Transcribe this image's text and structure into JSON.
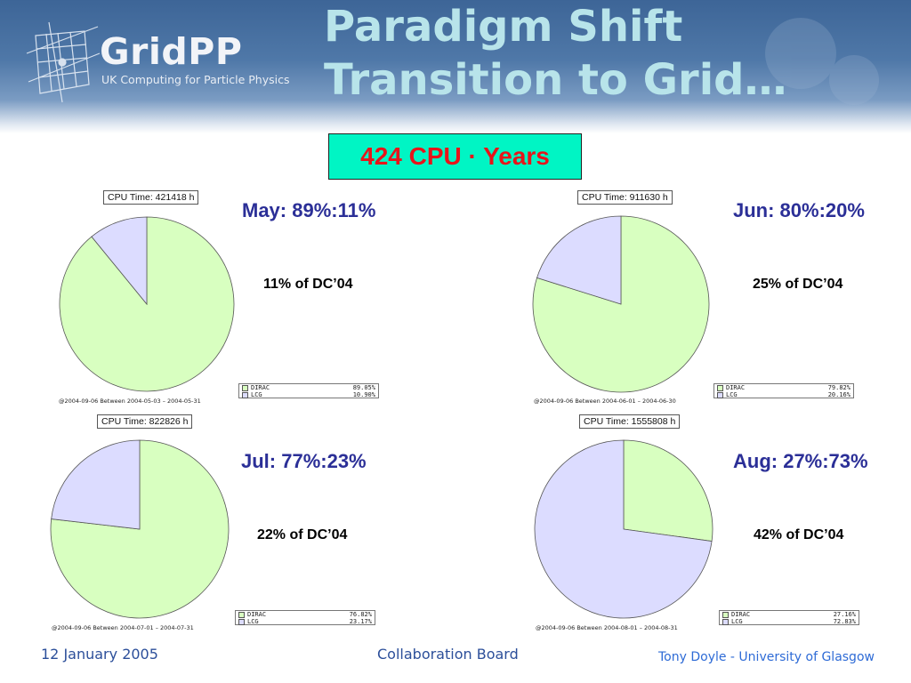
{
  "header": {
    "logo_word": "GridPP",
    "logo_sub": "UK Computing for Particle Physics",
    "title_line1": "Paradigm Shift",
    "title_line2": "Transition to Grid…"
  },
  "total_label": "424 CPU · Years",
  "colors": {
    "dirac": "#d8ffc0",
    "lcg": "#dcdcff",
    "ratio_text": "#2b2f97",
    "total_box_bg": "#00f5c4",
    "total_box_text": "#e8141a",
    "footer_text": "#2c4f9a"
  },
  "chart_data": [
    {
      "type": "pie",
      "title": "CPU Time: 421418 h",
      "categories": [
        "DIRAC",
        "LCG"
      ],
      "values": [
        89.05,
        10.9
      ],
      "value_labels": [
        "89.05%",
        "10.90%"
      ],
      "footnote": "@2004-09-06  Between  2004-05-03 – 2004-05-31",
      "ratio_label": "May: 89%:11%",
      "dc_label": "11% of DC’04"
    },
    {
      "type": "pie",
      "title": "CPU Time: 911630 h",
      "categories": [
        "DIRAC",
        "LCG"
      ],
      "values": [
        79.82,
        20.16
      ],
      "value_labels": [
        "79.82%",
        "20.16%"
      ],
      "footnote": "@2004-09-06  Between  2004-06-01 – 2004-06-30",
      "ratio_label": "Jun: 80%:20%",
      "dc_label": "25% of DC’04"
    },
    {
      "type": "pie",
      "title": "CPU Time: 822826 h",
      "categories": [
        "DIRAC",
        "LCG"
      ],
      "values": [
        76.82,
        23.17
      ],
      "value_labels": [
        "76.82%",
        "23.17%"
      ],
      "footnote": "@2004-09-06  Between  2004-07-01 – 2004-07-31",
      "ratio_label": "Jul: 77%:23%",
      "dc_label": "22% of DC’04"
    },
    {
      "type": "pie",
      "title": "CPU Time: 1555808 h",
      "categories": [
        "DIRAC",
        "LCG"
      ],
      "values": [
        27.16,
        72.83
      ],
      "value_labels": [
        "27.16%",
        "72.83%"
      ],
      "footnote": "@2004-09-06  Between  2004-08-01 – 2004-08-31",
      "ratio_label": "Aug: 27%:73%",
      "dc_label": "42% of DC’04"
    }
  ],
  "footer": {
    "date": "12 January 2005",
    "center": "Collaboration Board",
    "right": "Tony Doyle - University of Glasgow"
  }
}
